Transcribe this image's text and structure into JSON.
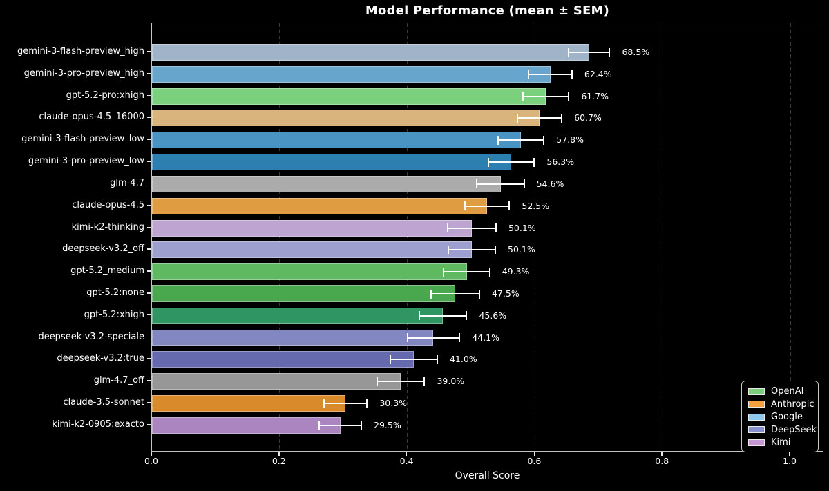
{
  "chart_data": {
    "type": "bar",
    "orientation": "horizontal",
    "title": "Model Performance (mean ± SEM)",
    "xlabel": "Overall Score",
    "xlim": [
      0,
      1.053
    ],
    "x_ticks": [
      0.0,
      0.2,
      0.4,
      0.6,
      0.8,
      1.0
    ],
    "x_tick_labels": [
      "0.0",
      "0.2",
      "0.4",
      "0.6",
      "0.8",
      "1.0"
    ],
    "grid": {
      "axis": "x",
      "style": "dashed",
      "color": "#3a3a3a"
    },
    "background_color": "#000000",
    "text_color": "#ffffff",
    "error_bar_color": "#ffffff",
    "bars": [
      {
        "label": "gemini-3-flash-preview_high",
        "value": 0.685,
        "sem": 0.033,
        "display": "68.5%",
        "company": "Google",
        "color": "#9fb4c8"
      },
      {
        "label": "gemini-3-pro-preview_high",
        "value": 0.624,
        "sem": 0.035,
        "display": "62.4%",
        "company": "Google",
        "color": "#68a5cc"
      },
      {
        "label": "gpt-5.2-pro:xhigh",
        "value": 0.617,
        "sem": 0.037,
        "display": "61.7%",
        "company": "OpenAI",
        "color": "#7bd07e"
      },
      {
        "label": "claude-opus-4.5_16000",
        "value": 0.607,
        "sem": 0.036,
        "display": "60.7%",
        "company": "Anthropic",
        "color": "#d9b47c"
      },
      {
        "label": "gemini-3-flash-preview_low",
        "value": 0.578,
        "sem": 0.037,
        "display": "57.8%",
        "company": "Google",
        "color": "#4a94c4"
      },
      {
        "label": "gemini-3-pro-preview_low",
        "value": 0.563,
        "sem": 0.037,
        "display": "56.3%",
        "company": "Google",
        "color": "#2b80b0"
      },
      {
        "label": "glm-4.7",
        "value": 0.546,
        "sem": 0.038,
        "display": "54.6%",
        "company": "Other",
        "color": "#ababab"
      },
      {
        "label": "claude-opus-4.5",
        "value": 0.525,
        "sem": 0.036,
        "display": "52.5%",
        "company": "Anthropic",
        "color": "#e09c40"
      },
      {
        "label": "kimi-k2-thinking",
        "value": 0.501,
        "sem": 0.039,
        "display": "50.1%",
        "company": "Kimi",
        "color": "#bda4d1"
      },
      {
        "label": "deepseek-v3.2_off",
        "value": 0.501,
        "sem": 0.038,
        "display": "50.1%",
        "company": "DeepSeek",
        "color": "#9da0ce"
      },
      {
        "label": "gpt-5.2_medium",
        "value": 0.493,
        "sem": 0.037,
        "display": "49.3%",
        "company": "OpenAI",
        "color": "#5fb961"
      },
      {
        "label": "gpt-5.2:none",
        "value": 0.475,
        "sem": 0.039,
        "display": "47.5%",
        "company": "OpenAI",
        "color": "#49a84e"
      },
      {
        "label": "gpt-5.2:xhigh",
        "value": 0.456,
        "sem": 0.038,
        "display": "45.6%",
        "company": "OpenAI",
        "color": "#2f9663"
      },
      {
        "label": "deepseek-v3.2-speciale",
        "value": 0.441,
        "sem": 0.042,
        "display": "44.1%",
        "company": "DeepSeek",
        "color": "#8287c2"
      },
      {
        "label": "deepseek-v3.2:true",
        "value": 0.41,
        "sem": 0.038,
        "display": "41.0%",
        "company": "DeepSeek",
        "color": "#6569ad"
      },
      {
        "label": "glm-4.7_off",
        "value": 0.39,
        "sem": 0.038,
        "display": "39.0%",
        "company": "Other",
        "color": "#979797"
      },
      {
        "label": "claude-3.5-sonnet",
        "value": 0.303,
        "sem": 0.035,
        "display": "30.3%",
        "company": "Anthropic",
        "color": "#d98a2b"
      },
      {
        "label": "kimi-k2-0905:exacto",
        "value": 0.295,
        "sem": 0.034,
        "display": "29.5%",
        "company": "Kimi",
        "color": "#ab85bf"
      }
    ],
    "legend": {
      "position": "lower right",
      "entries": [
        {
          "label": "OpenAI",
          "color": "#7ace7c"
        },
        {
          "label": "Anthropic",
          "color": "#f2a13c"
        },
        {
          "label": "Google",
          "color": "#8dc9ee"
        },
        {
          "label": "DeepSeek",
          "color": "#8a8fd0"
        },
        {
          "label": "Kimi",
          "color": "#c798d6"
        }
      ]
    }
  }
}
